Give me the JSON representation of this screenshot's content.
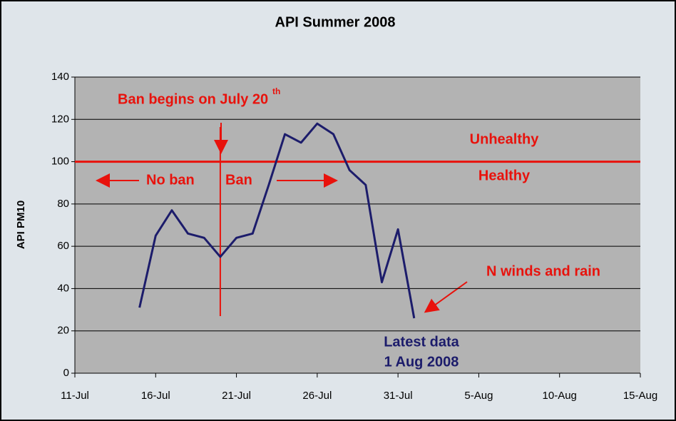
{
  "chart_data": {
    "type": "line",
    "title": "API Summer 2008",
    "y_label": "API PM10",
    "x": [
      15,
      16,
      17,
      18,
      19,
      20,
      21,
      22,
      23,
      24,
      25,
      26,
      27,
      28,
      29,
      30,
      31,
      32
    ],
    "series": [
      {
        "name": "API PM10",
        "color": "#1c1c6b",
        "values": [
          31,
          65,
          77,
          66,
          64,
          55,
          64,
          66,
          89,
          113,
          109,
          118,
          113,
          96,
          89,
          43,
          68,
          26
        ]
      }
    ],
    "xlim": [
      11,
      46
    ],
    "xticks": [
      {
        "value": 11,
        "label": "11-Jul"
      },
      {
        "value": 16,
        "label": "16-Jul"
      },
      {
        "value": 21,
        "label": "21-Jul"
      },
      {
        "value": 26,
        "label": "26-Jul"
      },
      {
        "value": 31,
        "label": "31-Jul"
      },
      {
        "value": 36,
        "label": "5-Aug"
      },
      {
        "value": 41,
        "label": "10-Aug"
      },
      {
        "value": 46,
        "label": "15-Aug"
      }
    ],
    "ylim": [
      0,
      140
    ],
    "yticks": [
      0,
      20,
      40,
      60,
      80,
      100,
      120,
      140
    ],
    "grid": true,
    "threshold": 100,
    "threshold_color": "#e8120c",
    "ban_day": 20,
    "annotations": [
      "Ban begins on July 20",
      "th",
      "Unhealthy",
      "Healthy",
      "No ban",
      "Ban",
      "N winds and rain",
      "Latest data",
      "1 Aug 2008"
    ]
  }
}
